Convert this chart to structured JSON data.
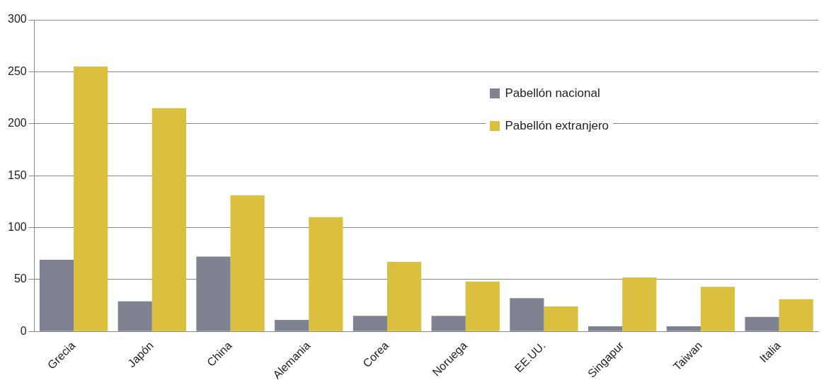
{
  "chart_data": {
    "type": "bar",
    "categories": [
      "Grecia",
      "Japón",
      "China",
      "Alemania",
      "Corea",
      "Noruega",
      "EE.UU.",
      "Singapur",
      "Taiwan",
      "Italia"
    ],
    "series": [
      {
        "name": "Pabellón nacional",
        "color": "#7f8290",
        "values": [
          69,
          29,
          72,
          11,
          15,
          15,
          32,
          5,
          5,
          14
        ]
      },
      {
        "name": "Pabellón extranjero",
        "color": "#dbbf3e",
        "values": [
          255,
          215,
          131,
          110,
          67,
          48,
          24,
          52,
          43,
          31
        ]
      }
    ],
    "ylim": [
      0,
      300
    ],
    "yticks": [
      0,
      50,
      100,
      150,
      200,
      250,
      300
    ],
    "grid": "y",
    "legend": "top right"
  }
}
